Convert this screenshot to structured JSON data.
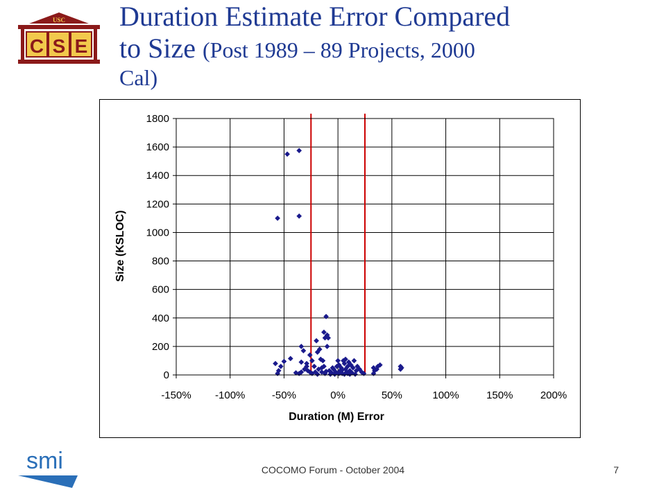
{
  "slide": {
    "title_main": "Duration Estimate Error Compared",
    "title_line2_main": "to Size ",
    "title_line2_sub": "(Post 1989 – 89 Projects, 2000",
    "title_line3": "Cal)",
    "footer": "COCOMO Forum - October 2004",
    "page_number": "7",
    "logo_text": "CSE",
    "logo_usc": "USC",
    "logo_smi": "smi",
    "accent_color": "#1f3a93"
  },
  "chart_data": {
    "type": "scatter",
    "title": "",
    "xlabel": "Duration (M) Error",
    "ylabel": "Size (KSLOC)",
    "xlim": [
      -1.5,
      2.0
    ],
    "ylim": [
      0,
      1800
    ],
    "x_ticks": [
      -1.5,
      -1.0,
      -0.5,
      0,
      0.5,
      1.0,
      1.5,
      2.0
    ],
    "x_tick_labels": [
      "-150%",
      "-100%",
      "-50%",
      "0%",
      "50%",
      "100%",
      "150%",
      "200%"
    ],
    "y_ticks": [
      0,
      200,
      400,
      600,
      800,
      1000,
      1200,
      1400,
      1600,
      1800
    ],
    "y_tick_labels": [
      "0",
      "200",
      "400",
      "600",
      "800",
      "1000",
      "1200",
      "1400",
      "1600",
      "1800"
    ],
    "grid": true,
    "vertical_lines": [
      -0.25,
      0.25
    ],
    "vertical_line_color": "#cc0000",
    "marker_color": "#1a1a8c",
    "points": [
      {
        "x": -0.47,
        "y": 1550
      },
      {
        "x": -0.36,
        "y": 1575
      },
      {
        "x": -0.56,
        "y": 1100
      },
      {
        "x": -0.36,
        "y": 1115
      },
      {
        "x": -0.11,
        "y": 410
      },
      {
        "x": -0.13,
        "y": 300
      },
      {
        "x": -0.1,
        "y": 280
      },
      {
        "x": -0.12,
        "y": 260
      },
      {
        "x": -0.09,
        "y": 260
      },
      {
        "x": -0.2,
        "y": 240
      },
      {
        "x": -0.1,
        "y": 200
      },
      {
        "x": -0.34,
        "y": 200
      },
      {
        "x": -0.17,
        "y": 180
      },
      {
        "x": -0.32,
        "y": 170
      },
      {
        "x": -0.19,
        "y": 160
      },
      {
        "x": -0.26,
        "y": 140
      },
      {
        "x": -0.44,
        "y": 115
      },
      {
        "x": -0.16,
        "y": 110
      },
      {
        "x": -0.24,
        "y": 100
      },
      {
        "x": -0.14,
        "y": 100
      },
      {
        "x": -0.5,
        "y": 95
      },
      {
        "x": -0.34,
        "y": 90
      },
      {
        "x": -0.58,
        "y": 80
      },
      {
        "x": -0.53,
        "y": 60
      },
      {
        "x": -0.29,
        "y": 60
      },
      {
        "x": -0.22,
        "y": 60
      },
      {
        "x": -0.13,
        "y": 60
      },
      {
        "x": -0.05,
        "y": 50
      },
      {
        "x": -0.55,
        "y": 30
      },
      {
        "x": -0.56,
        "y": 10
      },
      {
        "x": -0.39,
        "y": 15
      },
      {
        "x": -0.34,
        "y": 20
      },
      {
        "x": -0.31,
        "y": 40
      },
      {
        "x": -0.28,
        "y": 30
      },
      {
        "x": -0.26,
        "y": 20
      },
      {
        "x": -0.24,
        "y": 10
      },
      {
        "x": -0.21,
        "y": 20
      },
      {
        "x": -0.18,
        "y": 40
      },
      {
        "x": -0.15,
        "y": 20
      },
      {
        "x": -0.12,
        "y": 10
      },
      {
        "x": -0.08,
        "y": 30
      },
      {
        "x": -0.06,
        "y": 15
      },
      {
        "x": -0.04,
        "y": 40
      },
      {
        "x": -0.02,
        "y": 20
      },
      {
        "x": -0.01,
        "y": 60
      },
      {
        "x": 0.0,
        "y": 100
      },
      {
        "x": 0.01,
        "y": 70
      },
      {
        "x": 0.02,
        "y": 30
      },
      {
        "x": 0.03,
        "y": 50
      },
      {
        "x": 0.04,
        "y": 10
      },
      {
        "x": 0.05,
        "y": 100
      },
      {
        "x": 0.06,
        "y": 80
      },
      {
        "x": 0.07,
        "y": 110
      },
      {
        "x": 0.07,
        "y": 40
      },
      {
        "x": 0.08,
        "y": 20
      },
      {
        "x": 0.09,
        "y": 60
      },
      {
        "x": 0.1,
        "y": 90
      },
      {
        "x": 0.11,
        "y": 30
      },
      {
        "x": 0.12,
        "y": 70
      },
      {
        "x": 0.13,
        "y": 15
      },
      {
        "x": 0.14,
        "y": 50
      },
      {
        "x": 0.15,
        "y": 100
      },
      {
        "x": 0.17,
        "y": 30
      },
      {
        "x": 0.18,
        "y": 60
      },
      {
        "x": 0.2,
        "y": 40
      },
      {
        "x": 0.22,
        "y": 20
      },
      {
        "x": 0.24,
        "y": 10
      },
      {
        "x": 0.01,
        "y": 10
      },
      {
        "x": -0.03,
        "y": 5
      },
      {
        "x": 0.06,
        "y": 5
      },
      {
        "x": 0.16,
        "y": 5
      },
      {
        "x": -0.19,
        "y": 5
      },
      {
        "x": 0.33,
        "y": 50
      },
      {
        "x": 0.34,
        "y": 30
      },
      {
        "x": 0.33,
        "y": 10
      },
      {
        "x": 0.37,
        "y": 60
      },
      {
        "x": 0.36,
        "y": 40
      },
      {
        "x": 0.39,
        "y": 70
      },
      {
        "x": 0.58,
        "y": 60
      },
      {
        "x": 0.58,
        "y": 40
      },
      {
        "x": 0.59,
        "y": 50
      },
      {
        "x": -0.36,
        "y": 10
      },
      {
        "x": -0.29,
        "y": 80
      },
      {
        "x": -0.07,
        "y": 5
      },
      {
        "x": 0.11,
        "y": 5
      },
      {
        "x": -0.15,
        "y": 50
      },
      {
        "x": 0.04,
        "y": 35
      },
      {
        "x": 0.09,
        "y": 10
      },
      {
        "x": -0.11,
        "y": 25
      }
    ]
  }
}
